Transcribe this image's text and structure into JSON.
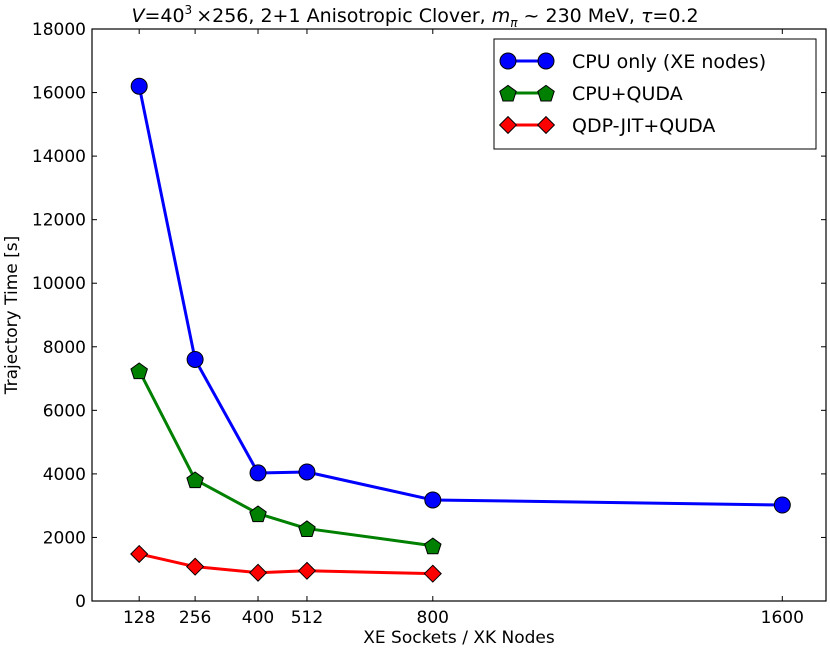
{
  "chart_data": {
    "type": "line",
    "title": {
      "v_sym": "V",
      "v_eq": "=40",
      "v_exp": "3",
      "times": "×256",
      "middle": ", 2+1 Anisotropic Clover, ",
      "m_sym": "m",
      "m_sub": "π",
      "mass": " ~ 230 MeV, ",
      "tau_sym": "τ",
      "tau_val": "=0.2"
    },
    "xlabel": "XE Sockets / XK Nodes",
    "ylabel": "Trajectory Time [s]",
    "xlim": [
      20,
      1700
    ],
    "ylim": [
      0,
      18000
    ],
    "xticks": [
      128,
      256,
      400,
      512,
      800,
      1600
    ],
    "xtick_labels": [
      "128",
      "256",
      "400",
      "512",
      "800",
      "1600"
    ],
    "yticks": [
      0,
      2000,
      4000,
      6000,
      8000,
      10000,
      12000,
      14000,
      16000,
      18000
    ],
    "ytick_labels": [
      "0",
      "2000",
      "4000",
      "6000",
      "8000",
      "10000",
      "12000",
      "14000",
      "16000",
      "18000"
    ],
    "legend_position": "top-right",
    "series": [
      {
        "name": "CPU only (XE nodes)",
        "color": "#0000ff",
        "marker": "circle",
        "x": [
          128,
          256,
          400,
          512,
          800,
          1600
        ],
        "y": [
          16200,
          7600,
          4030,
          4060,
          3180,
          3020
        ]
      },
      {
        "name": "CPU+QUDA",
        "color": "#008000",
        "marker": "pentagon",
        "x": [
          128,
          256,
          400,
          512,
          800
        ],
        "y": [
          7250,
          3820,
          2750,
          2280,
          1740
        ]
      },
      {
        "name": "QDP-JIT+QUDA",
        "color": "#ff0000",
        "marker": "diamond",
        "x": [
          128,
          256,
          400,
          512,
          800
        ],
        "y": [
          1480,
          1080,
          890,
          950,
          860
        ]
      }
    ]
  }
}
